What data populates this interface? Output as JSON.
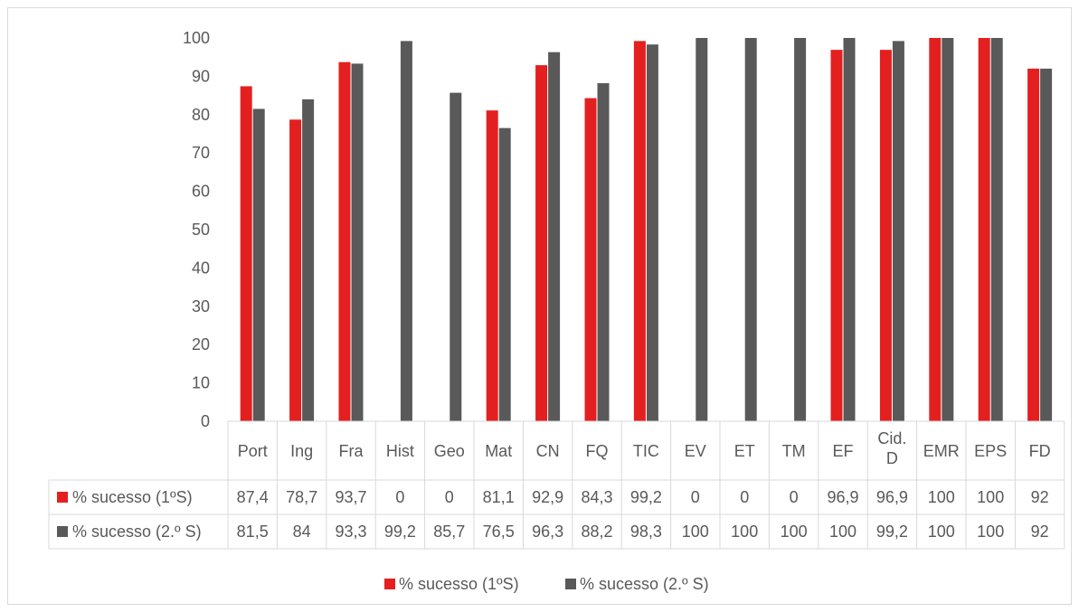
{
  "chart_data": {
    "type": "bar",
    "categories": [
      "Port",
      "Ing",
      "Fra",
      "Hist",
      "Geo",
      "Mat",
      "CN",
      "FQ",
      "TIC",
      "EV",
      "ET",
      "TM",
      "EF",
      "Cid. D",
      "EMR",
      "EPS",
      "FD"
    ],
    "category_lines": [
      [
        "Port"
      ],
      [
        "Ing"
      ],
      [
        "Fra"
      ],
      [
        "Hist"
      ],
      [
        "Geo"
      ],
      [
        "Mat"
      ],
      [
        "CN"
      ],
      [
        "FQ"
      ],
      [
        "TIC"
      ],
      [
        "EV"
      ],
      [
        "ET"
      ],
      [
        "TM"
      ],
      [
        "EF"
      ],
      [
        "Cid.",
        "D"
      ],
      [
        "EMR"
      ],
      [
        "EPS"
      ],
      [
        "FD"
      ]
    ],
    "series": [
      {
        "name": "% sucesso (1ºS)",
        "color": "#e41f1f",
        "values": [
          87.4,
          78.7,
          93.7,
          0,
          0,
          81.1,
          92.9,
          84.3,
          99.2,
          0,
          0,
          0,
          96.9,
          96.9,
          100,
          100,
          92
        ],
        "labels": [
          "87,4",
          "78,7",
          "93,7",
          "0",
          "0",
          "81,1",
          "92,9",
          "84,3",
          "99,2",
          "0",
          "0",
          "0",
          "96,9",
          "96,9",
          "100",
          "100",
          "92"
        ]
      },
      {
        "name": "% sucesso (2.º S)",
        "color": "#595959",
        "values": [
          81.5,
          84,
          93.3,
          99.2,
          85.7,
          76.5,
          96.3,
          88.2,
          98.3,
          100,
          100,
          100,
          100,
          99.2,
          100,
          100,
          92
        ],
        "labels": [
          "81,5",
          "84",
          "93,3",
          "99,2",
          "85,7",
          "76,5",
          "96,3",
          "88,2",
          "98,3",
          "100",
          "100",
          "100",
          "100",
          "99,2",
          "100",
          "100",
          "92"
        ]
      }
    ],
    "yticks": [
      "0",
      "10",
      "20",
      "30",
      "40",
      "50",
      "60",
      "70",
      "80",
      "90",
      "100"
    ],
    "ylim": [
      0,
      100
    ],
    "grid": false,
    "legend": "bottom",
    "data_table": true,
    "title": "",
    "xlabel": "",
    "ylabel": ""
  }
}
